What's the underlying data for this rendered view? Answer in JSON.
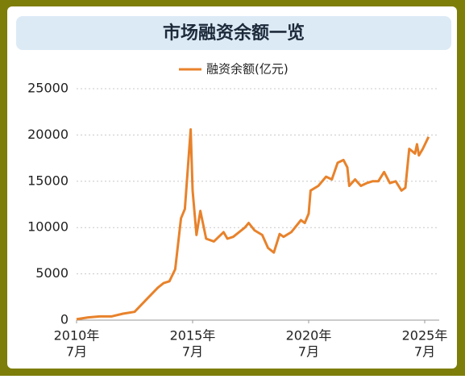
{
  "chart_data": {
    "type": "line",
    "title": "市场融资余额一览",
    "x": [
      "2010-07",
      "2011-01",
      "2011-07",
      "2012-01",
      "2012-07",
      "2013-01",
      "2013-07",
      "2014-01",
      "2014-04",
      "2014-07",
      "2014-10",
      "2015-01",
      "2015-03",
      "2015-06",
      "2015-07",
      "2015-09",
      "2015-11",
      "2016-02",
      "2016-06",
      "2016-11",
      "2017-01",
      "2017-04",
      "2017-10",
      "2017-12",
      "2018-03",
      "2018-07",
      "2018-10",
      "2019-01",
      "2019-04",
      "2019-06",
      "2019-10",
      "2020-03",
      "2020-05",
      "2020-07",
      "2020-08",
      "2020-12",
      "2021-04",
      "2021-07",
      "2021-10",
      "2022-01",
      "2022-03",
      "2022-04",
      "2022-07",
      "2022-10",
      "2023-01",
      "2023-04",
      "2023-07",
      "2023-10",
      "2024-01",
      "2024-04",
      "2024-07",
      "2024-09",
      "2024-11",
      "2025-02",
      "2025-03",
      "2025-04",
      "2025-06",
      "2025-09"
    ],
    "series": [
      {
        "name": "融资余额(亿元)",
        "color": "#e8822b",
        "values": [
          100,
          300,
          400,
          400,
          700,
          900,
          2200,
          3500,
          4000,
          4200,
          5500,
          11000,
          12000,
          20600,
          14000,
          9200,
          11800,
          8800,
          8500,
          9500,
          8800,
          9000,
          10000,
          10500,
          9700,
          9200,
          7800,
          7300,
          9300,
          9000,
          9500,
          10800,
          10500,
          11500,
          14000,
          14500,
          15500,
          15200,
          17000,
          17300,
          16500,
          14500,
          15200,
          14500,
          14800,
          15000,
          15000,
          16000,
          14800,
          15000,
          14000,
          14300,
          18500,
          18000,
          19000,
          17800,
          18500,
          19800
        ]
      }
    ],
    "xlim": [
      "2010-07",
      "2025-10"
    ],
    "xticks": [
      {
        "value": "2010-07",
        "label": [
          "2010年",
          "7月"
        ]
      },
      {
        "value": "2015-07",
        "label": [
          "2015年",
          "7月"
        ]
      },
      {
        "value": "2020-07",
        "label": [
          "2020年",
          "7月"
        ]
      },
      {
        "value": "2025-07",
        "label": [
          "2025年",
          "7月"
        ]
      }
    ],
    "ylim": [
      0,
      25000
    ],
    "yticks": [
      0,
      5000,
      10000,
      15000,
      20000,
      25000
    ],
    "grid": true,
    "legend": "top"
  }
}
